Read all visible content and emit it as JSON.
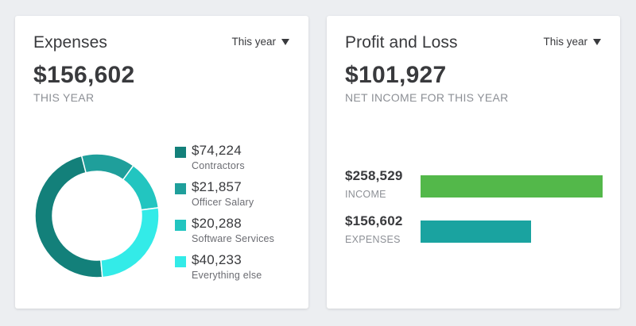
{
  "colors": {
    "contractors": "#13807a",
    "officer_salary": "#1f9f9b",
    "software_services": "#22c5c0",
    "everything_else": "#33ebe8",
    "income_bar": "#53b84a",
    "expenses_bar": "#1aa3a0"
  },
  "expenses": {
    "title": "Expenses",
    "period": "This year",
    "total": "$156,602",
    "caption": "THIS YEAR",
    "categories": [
      {
        "amount": "$74,224",
        "label": "Contractors",
        "value": 74224,
        "color_key": "contractors"
      },
      {
        "amount": "$21,857",
        "label": "Officer Salary",
        "value": 21857,
        "color_key": "officer_salary"
      },
      {
        "amount": "$20,288",
        "label": "Software Services",
        "value": 20288,
        "color_key": "software_services"
      },
      {
        "amount": "$40,233",
        "label": "Everything else",
        "value": 40233,
        "color_key": "everything_else"
      }
    ]
  },
  "profit_loss": {
    "title": "Profit and Loss",
    "period": "This year",
    "net_income": "$101,927",
    "caption": "NET INCOME FOR THIS YEAR",
    "income": {
      "amount": "$258,529",
      "label": "INCOME",
      "value": 258529
    },
    "expenses": {
      "amount": "$156,602",
      "label": "EXPENSES",
      "value": 156602
    }
  }
}
